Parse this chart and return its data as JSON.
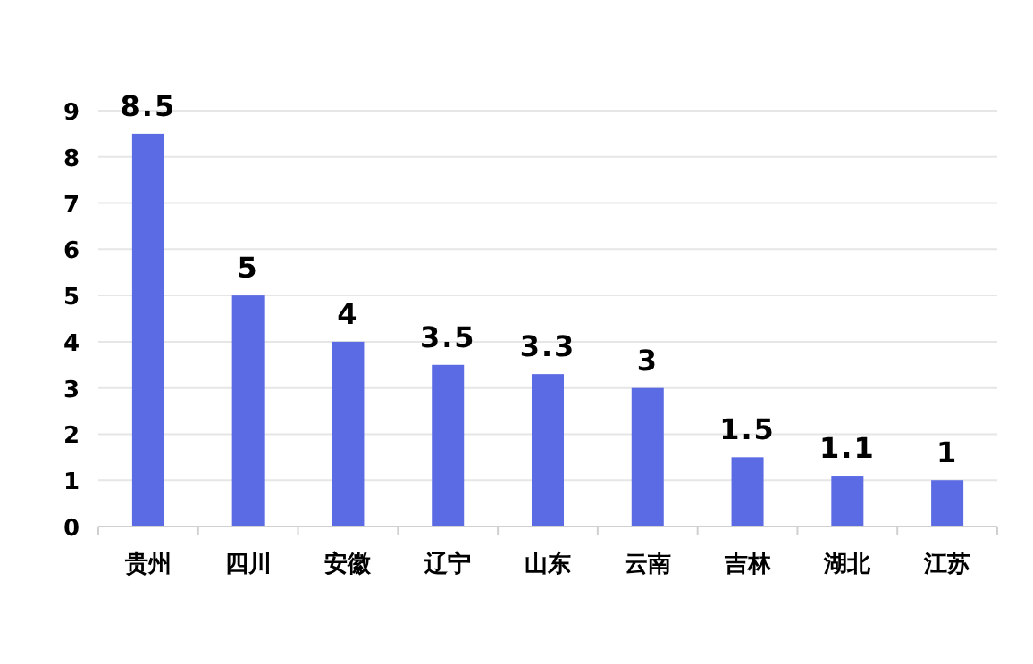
{
  "chart_data": {
    "type": "bar",
    "categories": [
      "贵州",
      "四川",
      "安徽",
      "辽宁",
      "山东",
      "云南",
      "吉林",
      "湖北",
      "江苏"
    ],
    "values": [
      8.5,
      5,
      4,
      3.5,
      3.3,
      3,
      1.5,
      1.1,
      1
    ],
    "color": "#5b6be3",
    "ylim": [
      0,
      9
    ],
    "yticks": [
      0,
      1,
      2,
      3,
      4,
      5,
      6,
      7,
      8,
      9
    ],
    "grid": "y",
    "data_labels": true
  }
}
